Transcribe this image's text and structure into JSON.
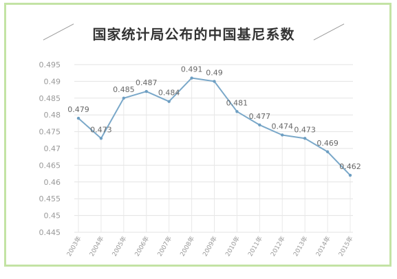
{
  "chart_data": {
    "type": "line",
    "title": "国家统计局公布的中国基尼系数",
    "xlabel": "",
    "ylabel": "",
    "categories": [
      "2003年",
      "2004年",
      "2005年",
      "2006年",
      "2007年",
      "2008年",
      "2009年",
      "2010年",
      "2011年",
      "2012年",
      "2013年",
      "2014年",
      "2015年"
    ],
    "series": [
      {
        "values": [
          0.479,
          0.473,
          0.485,
          0.487,
          0.484,
          0.491,
          0.49,
          0.481,
          0.477,
          0.474,
          0.473,
          0.469,
          0.462
        ]
      }
    ],
    "data_labels": [
      "0.479",
      "0.473",
      "0.485",
      "0.487",
      "0.484",
      "0.491",
      "0.49",
      "0.481",
      "0.477",
      "0.474",
      "0.473",
      "0.469",
      "0.462"
    ],
    "ylim": [
      0.445,
      0.495
    ],
    "yticks": [
      "0.495",
      "0.49",
      "0.485",
      "0.48",
      "0.475",
      "0.47",
      "0.465",
      "0.46",
      "0.455",
      "0.45",
      "0.445"
    ],
    "ytick_values": [
      0.495,
      0.49,
      0.485,
      0.48,
      0.475,
      0.47,
      0.465,
      0.46,
      0.455,
      0.45,
      0.445
    ],
    "grid": "horizontal",
    "legend": "none",
    "colors": {
      "line": "#7aa8c9",
      "marker": "#6d9ec2",
      "grid": "#e3e3e3",
      "tick_text": "#999999",
      "label_text": "#666666"
    }
  }
}
